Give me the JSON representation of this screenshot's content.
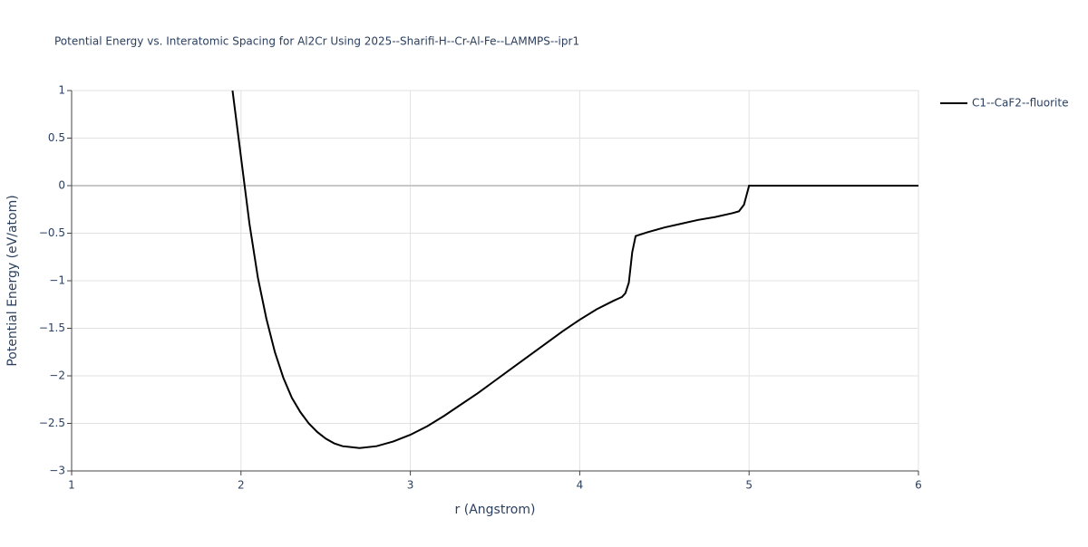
{
  "chart_data": {
    "type": "line",
    "title": "Potential Energy vs. Interatomic Spacing for Al2Cr Using 2025--Sharifi-H--Cr-Al-Fe--LAMMPS--ipr1",
    "x_label": "r (Angstrom)",
    "y_label": "Potential Energy (eV/atom)",
    "x": [
      1.95,
      2.0,
      2.05,
      2.1,
      2.15,
      2.2,
      2.25,
      2.3,
      2.35,
      2.4,
      2.45,
      2.5,
      2.55,
      2.6,
      2.7,
      2.8,
      2.9,
      3.0,
      3.1,
      3.2,
      3.3,
      3.4,
      3.5,
      3.6,
      3.7,
      3.8,
      3.9,
      4.0,
      4.1,
      4.2,
      4.25,
      4.27,
      4.29,
      4.31,
      4.33,
      4.4,
      4.5,
      4.6,
      4.7,
      4.8,
      4.9,
      4.94,
      4.97,
      5.0,
      6.0
    ],
    "series": [
      {
        "name": "C1--CaF2--fluorite",
        "color": "#000000",
        "values": [
          1.0,
          0.3,
          -0.4,
          -0.97,
          -1.4,
          -1.75,
          -2.02,
          -2.23,
          -2.38,
          -2.5,
          -2.59,
          -2.66,
          -2.71,
          -2.74,
          -2.76,
          -2.74,
          -2.69,
          -2.62,
          -2.53,
          -2.42,
          -2.3,
          -2.18,
          -2.05,
          -1.92,
          -1.79,
          -1.66,
          -1.53,
          -1.41,
          -1.3,
          -1.21,
          -1.17,
          -1.13,
          -1.02,
          -0.7,
          -0.53,
          -0.49,
          -0.44,
          -0.4,
          -0.36,
          -0.33,
          -0.29,
          -0.27,
          -0.2,
          0,
          0
        ]
      }
    ],
    "xlim": [
      1,
      6
    ],
    "xticks": [
      1,
      2,
      3,
      4,
      5,
      6
    ],
    "ylim": [
      -3,
      1
    ],
    "yticks": [
      {
        "value": -3,
        "label": "−3"
      },
      {
        "value": -2.5,
        "label": "−2.5"
      },
      {
        "value": -2,
        "label": "−2"
      },
      {
        "value": -1.5,
        "label": "−1.5"
      },
      {
        "value": -1,
        "label": "−1"
      },
      {
        "value": -0.5,
        "label": "−0.5"
      },
      0,
      0.5,
      1
    ],
    "grid": true,
    "legend": "right"
  }
}
